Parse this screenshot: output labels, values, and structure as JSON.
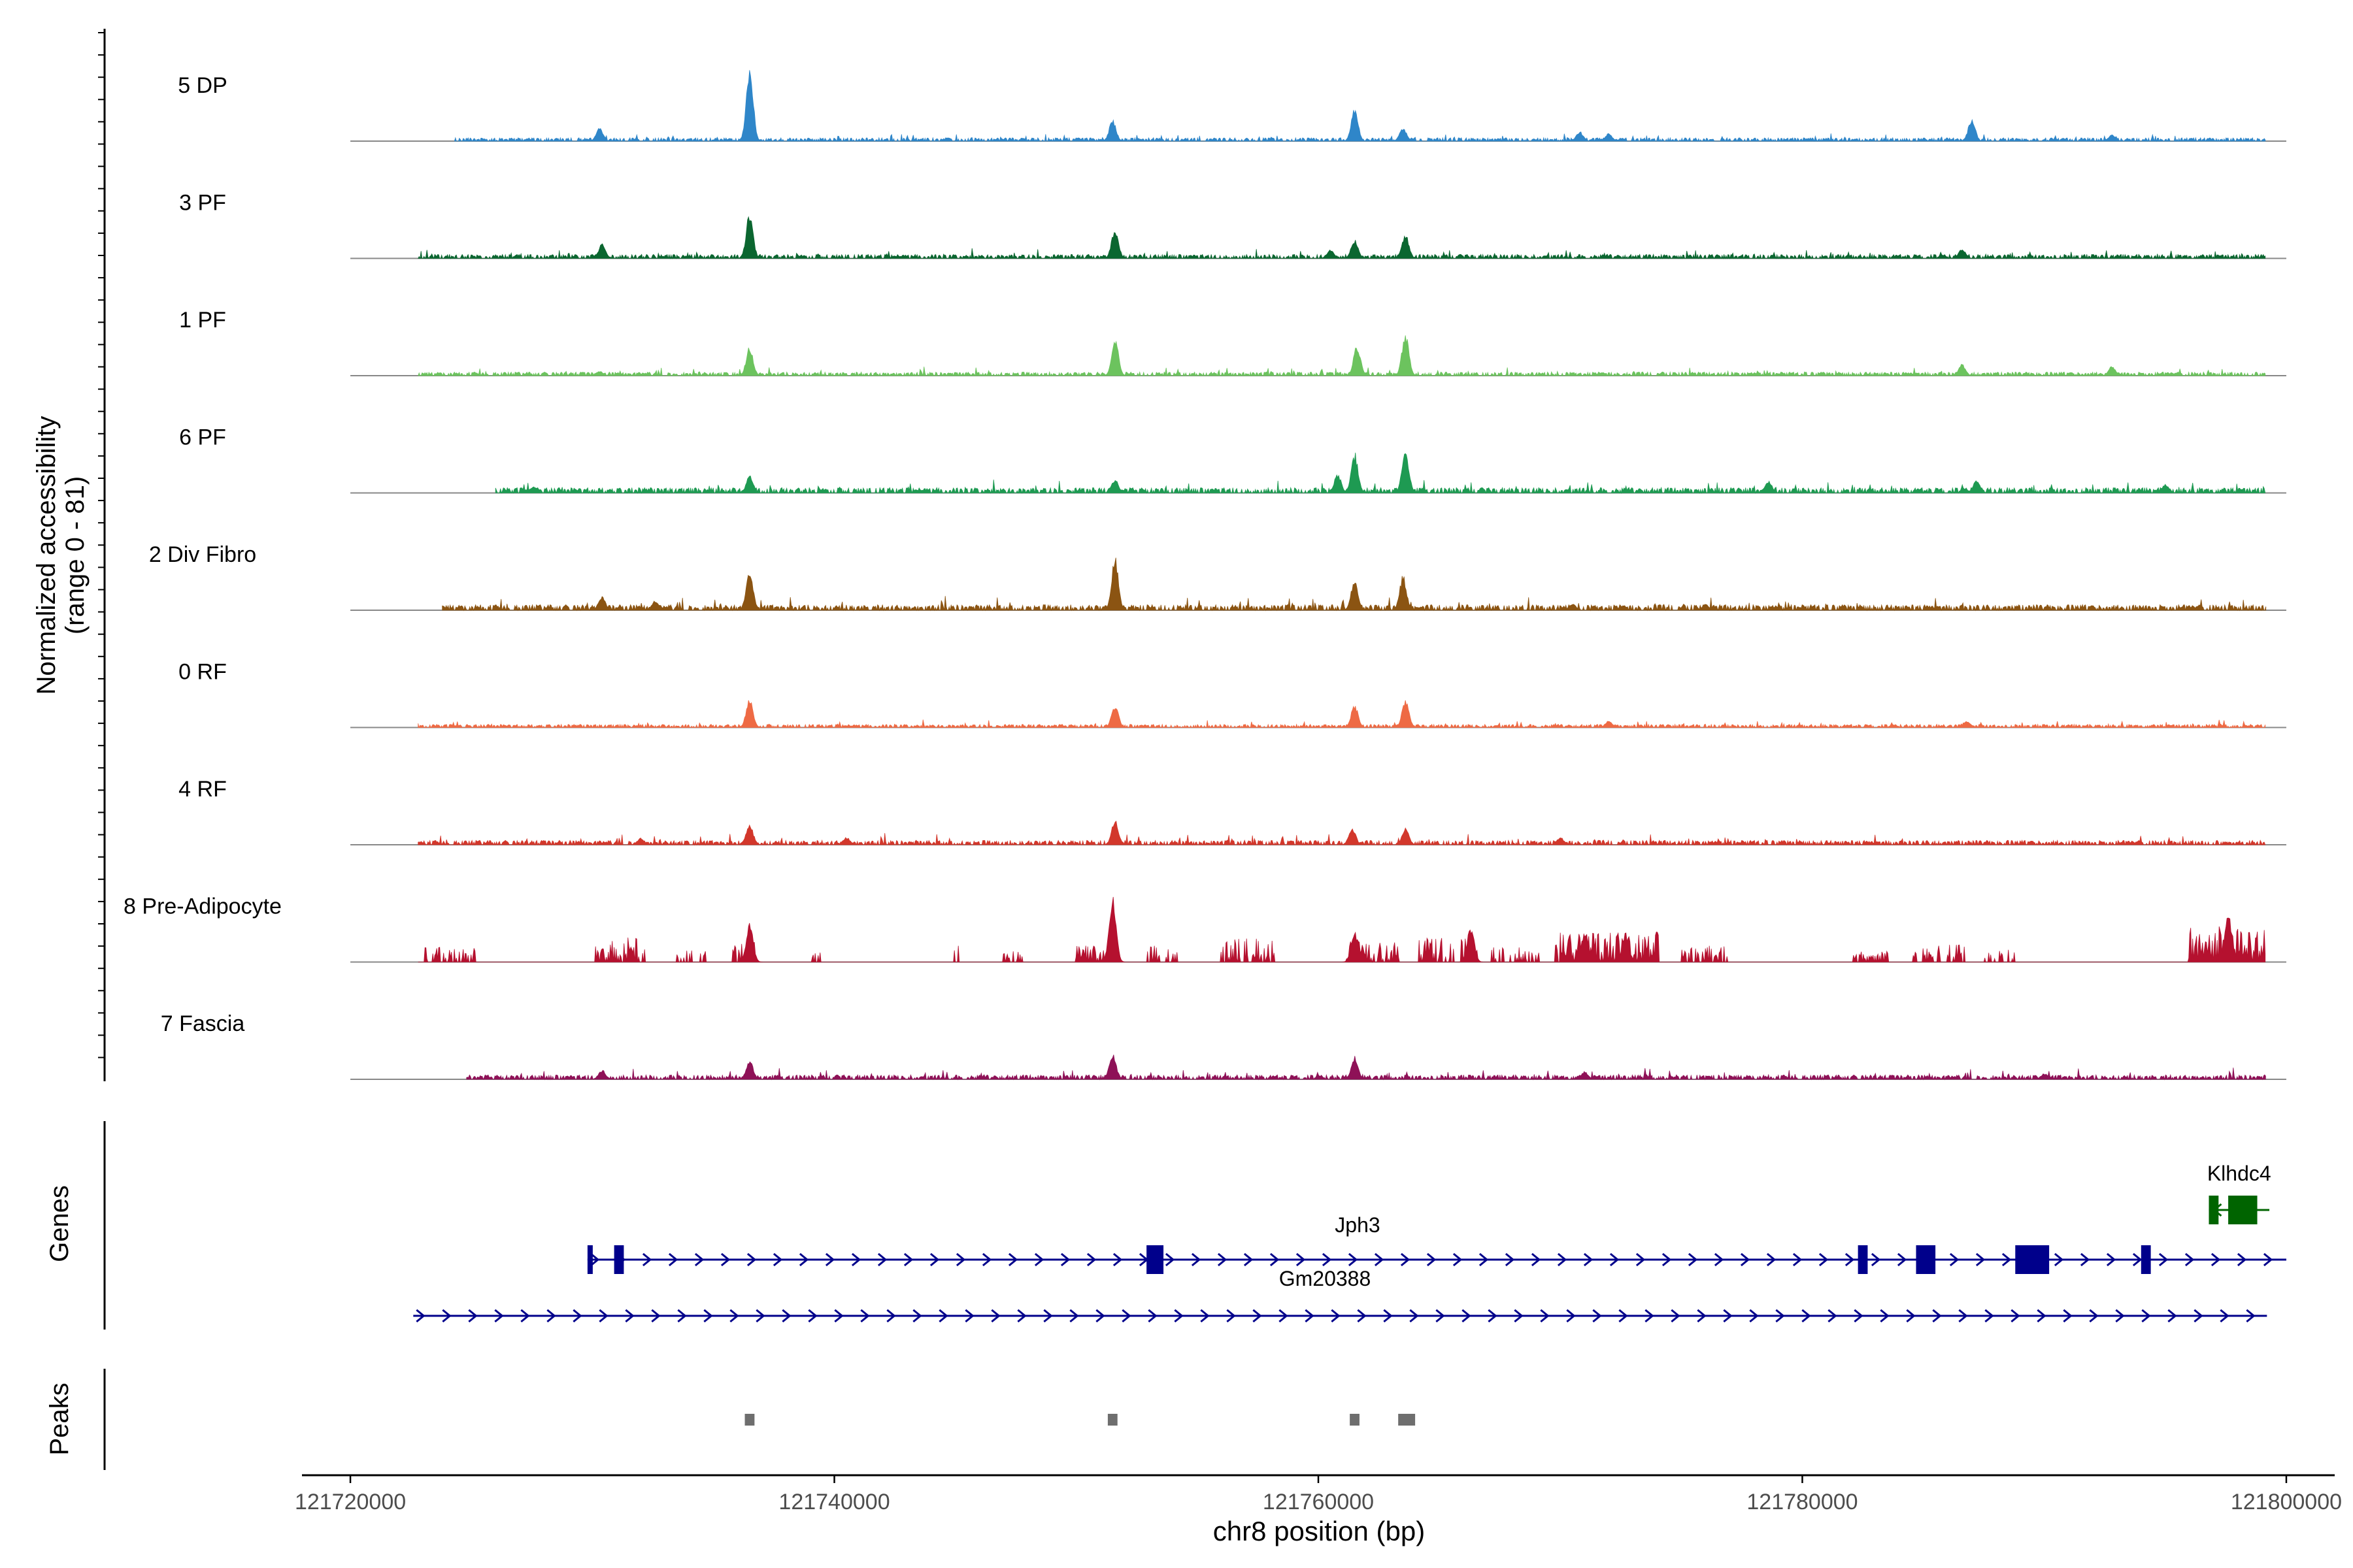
{
  "chart_data": {
    "type": "area",
    "title": "",
    "ylabel": "Normalized accessibility",
    "ylabel_range": "(range 0 - 81)",
    "xlabel": "chr8 position (bp)",
    "xlim": [
      121718000,
      121802000
    ],
    "ylim": [
      0,
      81
    ],
    "x_ticks": [
      121720000,
      121740000,
      121760000,
      121780000,
      121800000
    ],
    "x_tick_labels": [
      "121720000",
      "121740000",
      "121760000",
      "121780000",
      "121800000"
    ],
    "track_range_bp": [
      121720000,
      121800000
    ],
    "tracks": [
      {
        "name": "5 DP",
        "color": "#2f86c9",
        "start": 121724300,
        "end": 121799200,
        "base": 1.2,
        "noise": 2.2,
        "peaks": [
          [
            121736500,
            78
          ],
          [
            121730300,
            14
          ],
          [
            121751500,
            22
          ],
          [
            121761500,
            34
          ],
          [
            121763500,
            14
          ],
          [
            121770800,
            10
          ],
          [
            121787000,
            24
          ],
          [
            121772000,
            8
          ],
          [
            121792800,
            7
          ]
        ]
      },
      {
        "name": "3 PF",
        "color": "#0b6630",
        "start": 121722800,
        "end": 121799200,
        "base": 1.5,
        "noise": 2.6,
        "peaks": [
          [
            121736500,
            48
          ],
          [
            121730400,
            15
          ],
          [
            121751600,
            32
          ],
          [
            121761500,
            20
          ],
          [
            121763600,
            25
          ],
          [
            121760500,
            9
          ],
          [
            121786600,
            10
          ]
        ]
      },
      {
        "name": "1 PF",
        "color": "#6cc35e",
        "start": 121722800,
        "end": 121799200,
        "base": 1.5,
        "noise": 2.2,
        "peaks": [
          [
            121736500,
            30
          ],
          [
            121751600,
            38
          ],
          [
            121761600,
            32
          ],
          [
            121763600,
            45
          ],
          [
            121786600,
            12
          ],
          [
            121792800,
            10
          ],
          [
            121730300,
            5
          ]
        ]
      },
      {
        "name": "6 PF",
        "color": "#1e9a52",
        "start": 121726000,
        "end": 121799200,
        "base": 2.0,
        "noise": 3.4,
        "peaks": [
          [
            121736500,
            18
          ],
          [
            121751600,
            14
          ],
          [
            121761500,
            42
          ],
          [
            121763600,
            45
          ],
          [
            121778600,
            13
          ],
          [
            121787200,
            14
          ],
          [
            121795000,
            9
          ],
          [
            121727600,
            7
          ],
          [
            121760800,
            20
          ]
        ]
      },
      {
        "name": "2 Div Fibro",
        "color": "#8b5412",
        "start": 121723800,
        "end": 121799200,
        "base": 2.0,
        "noise": 3.6,
        "peaks": [
          [
            121730400,
            14
          ],
          [
            121732600,
            10
          ],
          [
            121736500,
            45
          ],
          [
            121751600,
            55
          ],
          [
            121761500,
            32
          ],
          [
            121763500,
            36
          ],
          [
            121770500,
            7
          ],
          [
            121776000,
            6
          ]
        ]
      },
      {
        "name": "0 RF",
        "color": "#ee6a44",
        "start": 121722800,
        "end": 121799200,
        "base": 1.2,
        "noise": 2.0,
        "peaks": [
          [
            121736500,
            30
          ],
          [
            121751600,
            24
          ],
          [
            121761500,
            24
          ],
          [
            121763600,
            30
          ],
          [
            121772000,
            7
          ],
          [
            121786800,
            7
          ]
        ]
      },
      {
        "name": "4 RF",
        "color": "#d2372b",
        "start": 121722800,
        "end": 121799200,
        "base": 1.5,
        "noise": 3.0,
        "peaks": [
          [
            121736500,
            22
          ],
          [
            121751600,
            26
          ],
          [
            121761400,
            18
          ],
          [
            121763600,
            18
          ],
          [
            121732000,
            7
          ],
          [
            121740500,
            8
          ],
          [
            121770000,
            8
          ]
        ]
      },
      {
        "name": "8 Pre-Adipocyte",
        "color": "#b5112f",
        "start": 121722800,
        "end": 121799200,
        "base": 0,
        "noise": 0,
        "sparse": true,
        "clusters": [
          [
            121723000,
            121725200,
            0.5,
            12
          ],
          [
            121730100,
            121732300,
            0.6,
            22
          ],
          [
            121733500,
            121734800,
            0.4,
            10
          ],
          [
            121735800,
            121736800,
            0.5,
            18
          ],
          [
            121739000,
            121739500,
            0.3,
            8
          ],
          [
            121745000,
            121745200,
            0.3,
            14
          ],
          [
            121747000,
            121747800,
            0.4,
            8
          ],
          [
            121750000,
            121751300,
            0.6,
            14
          ],
          [
            121752800,
            121754200,
            0.5,
            14
          ],
          [
            121756000,
            121758300,
            0.6,
            22
          ],
          [
            121761200,
            121763400,
            0.6,
            18
          ],
          [
            121764200,
            121766600,
            0.6,
            22
          ],
          [
            121767200,
            121769200,
            0.4,
            12
          ],
          [
            121769800,
            121774100,
            0.8,
            28
          ],
          [
            121775000,
            121777000,
            0.5,
            14
          ],
          [
            121782000,
            121783600,
            0.4,
            8
          ],
          [
            121784600,
            121786800,
            0.5,
            16
          ],
          [
            121787500,
            121788800,
            0.4,
            10
          ],
          [
            121796000,
            121799200,
            0.9,
            34
          ]
        ],
        "peaks": [
          [
            121751500,
            70
          ],
          [
            121736500,
            40
          ],
          [
            121761500,
            32
          ],
          [
            121797600,
            55
          ],
          [
            121766300,
            38
          ],
          [
            121772700,
            30
          ],
          [
            121771000,
            30
          ]
        ]
      },
      {
        "name": "7 Fascia",
        "color": "#8e1157",
        "start": 121724800,
        "end": 121799200,
        "base": 1.5,
        "noise": 3.0,
        "peaks": [
          [
            121736500,
            20
          ],
          [
            121751500,
            28
          ],
          [
            121761500,
            24
          ],
          [
            121730400,
            10
          ],
          [
            121771000,
            8
          ],
          [
            121790000,
            6
          ]
        ]
      }
    ],
    "genes": [
      {
        "name": "Klhdc4",
        "color": "#006400",
        "strand": "-",
        "start": 121796800,
        "end": 121799300,
        "exons": [
          [
            121796800,
            121797200
          ],
          [
            121797600,
            121798800
          ]
        ]
      },
      {
        "name": "Jph3",
        "color": "#00008b",
        "strand": "+",
        "start": 121729800,
        "end": 121800000,
        "exons": [
          [
            121729800,
            121730000
          ],
          [
            121730900,
            121731300
          ],
          [
            121752900,
            121753600
          ],
          [
            121782300,
            121782700
          ],
          [
            121784700,
            121785500
          ],
          [
            121788800,
            121790200
          ],
          [
            121794000,
            121794400
          ]
        ]
      },
      {
        "name": "Gm20388",
        "color": "#00008b",
        "strand": "+",
        "start": 121722600,
        "end": 121799200,
        "exons": []
      }
    ],
    "genes_label": "Genes",
    "peaks_label": "Peaks",
    "peaks": [
      [
        121736300,
        121736700
      ],
      [
        121751300,
        121751700
      ],
      [
        121761300,
        121761700
      ],
      [
        121763300,
        121764000
      ]
    ]
  }
}
